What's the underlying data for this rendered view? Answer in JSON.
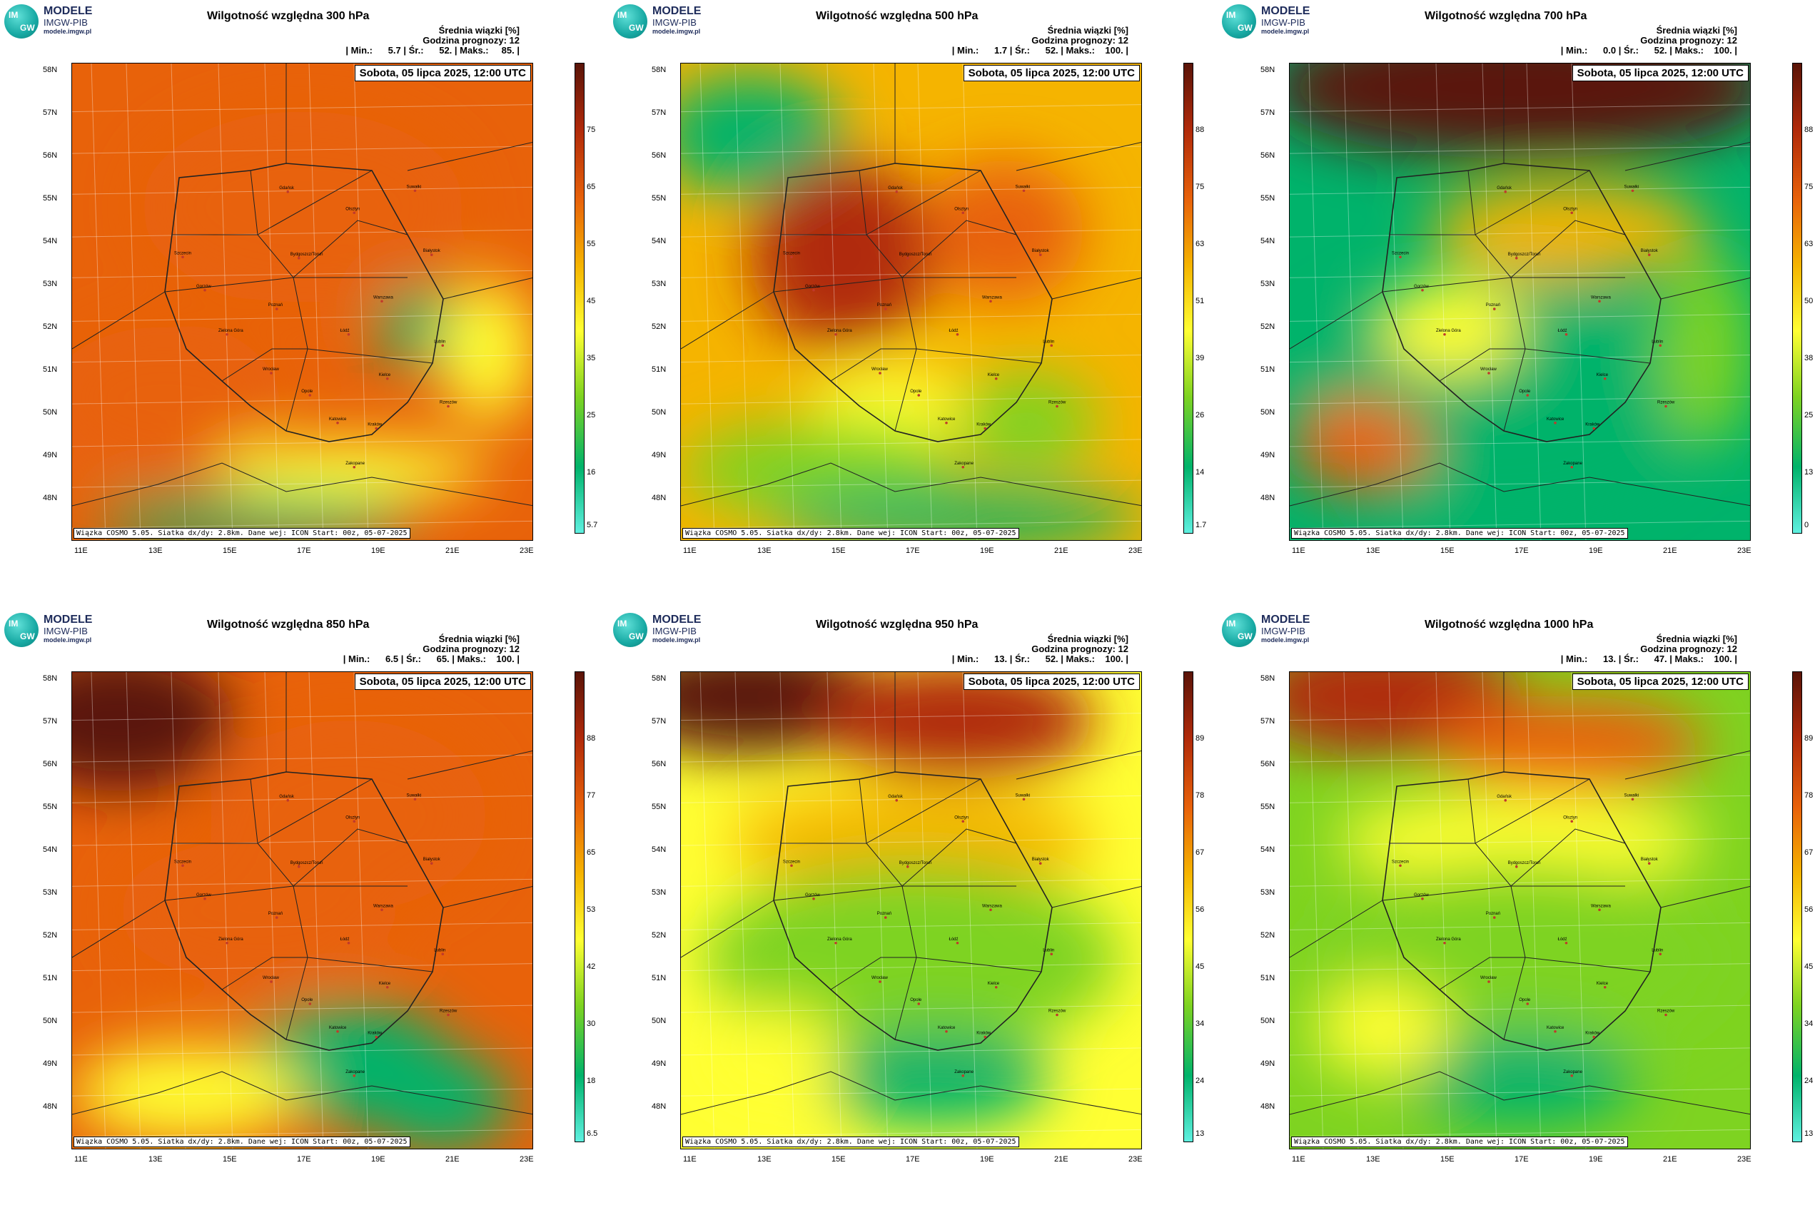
{
  "logo": {
    "mark_top": "IM",
    "mark_bottom": "GW",
    "line1": "MODELE",
    "line2": "IMGW-PIB",
    "line3": "modele.imgw.pl"
  },
  "common": {
    "header1": "Średnia wiązki [%]",
    "header2": "Godzina prognozy: 12",
    "date": "Sobota, 05 lipca 2025, 12:00 UTC",
    "info": "Wiązka COSMO 5.05. Siatka dx/dy: 2.8km. Dane wej: ICON Start: 00z, 05-07-2025",
    "lat_labels": [
      "58N",
      "57N",
      "56N",
      "55N",
      "54N",
      "53N",
      "52N",
      "51N",
      "50N",
      "49N",
      "48N"
    ],
    "lon_labels": [
      "11E",
      "13E",
      "15E",
      "17E",
      "19E",
      "21E",
      "23E"
    ]
  },
  "panels": [
    {
      "title": "Wilgotność względna 300 hPa",
      "stats": "| Min.:      5.7 | Śr.:      52. | Maks.:     85. |",
      "min": 5.7,
      "mean": 52,
      "max": 85,
      "ticks": [
        "75",
        "65",
        "55",
        "45",
        "35",
        "25",
        "16",
        "5.7"
      ]
    },
    {
      "title": "Wilgotność względna 500 hPa",
      "stats": "| Min.:      1.7 | Śr.:      52. | Maks.:    100. |",
      "min": 1.7,
      "mean": 52,
      "max": 100,
      "ticks": [
        "88",
        "75",
        "63",
        "51",
        "39",
        "26",
        "14",
        "1.7"
      ]
    },
    {
      "title": "Wilgotność względna 700 hPa",
      "stats": "| Min.:      0.0 | Śr.:      52. | Maks.:    100. |",
      "min": 0.0,
      "mean": 52,
      "max": 100,
      "ticks": [
        "88",
        "75",
        "63",
        "50",
        "38",
        "25",
        "13",
        "0"
      ]
    },
    {
      "title": "Wilgotność względna 850 hPa",
      "stats": "| Min.:      6.5 | Śr.:      65. | Maks.:    100. |",
      "min": 6.5,
      "mean": 65,
      "max": 100,
      "ticks": [
        "88",
        "77",
        "65",
        "53",
        "42",
        "30",
        "18",
        "6.5"
      ]
    },
    {
      "title": "Wilgotność względna 950 hPa",
      "stats": "| Min.:      13. | Śr.:      52. | Maks.:    100. |",
      "min": 13,
      "mean": 52,
      "max": 100,
      "ticks": [
        "89",
        "78",
        "67",
        "56",
        "45",
        "34",
        "24",
        "13"
      ]
    },
    {
      "title": "Wilgotność względna 1000 hPa",
      "stats": "| Min.:      13. | Śr.:      47. | Maks.:    100. |",
      "min": 13,
      "mean": 47,
      "max": 100,
      "ticks": [
        "89",
        "78",
        "67",
        "56",
        "45",
        "34",
        "24",
        "13"
      ]
    }
  ],
  "cities": [
    "Gdańsk",
    "Olsztyn",
    "Suwałki",
    "Szczecin",
    "Bydgoszcz/Toruń",
    "Białystok",
    "Gorzów",
    "Poznań",
    "Warszawa",
    "Zielona Góra",
    "Łódź",
    "Lublin",
    "Wrocław",
    "Opole",
    "Kielce",
    "Rzeszów",
    "Katowice",
    "Kraków",
    "Zakopane"
  ],
  "colors": {
    "scale": [
      "#5ff0e0",
      "#00b36b",
      "#7ed321",
      "#ffff33",
      "#f5b400",
      "#e8620a",
      "#b02a0a",
      "#5a1408"
    ],
    "border": "#222222",
    "city": "#c0392b"
  }
}
